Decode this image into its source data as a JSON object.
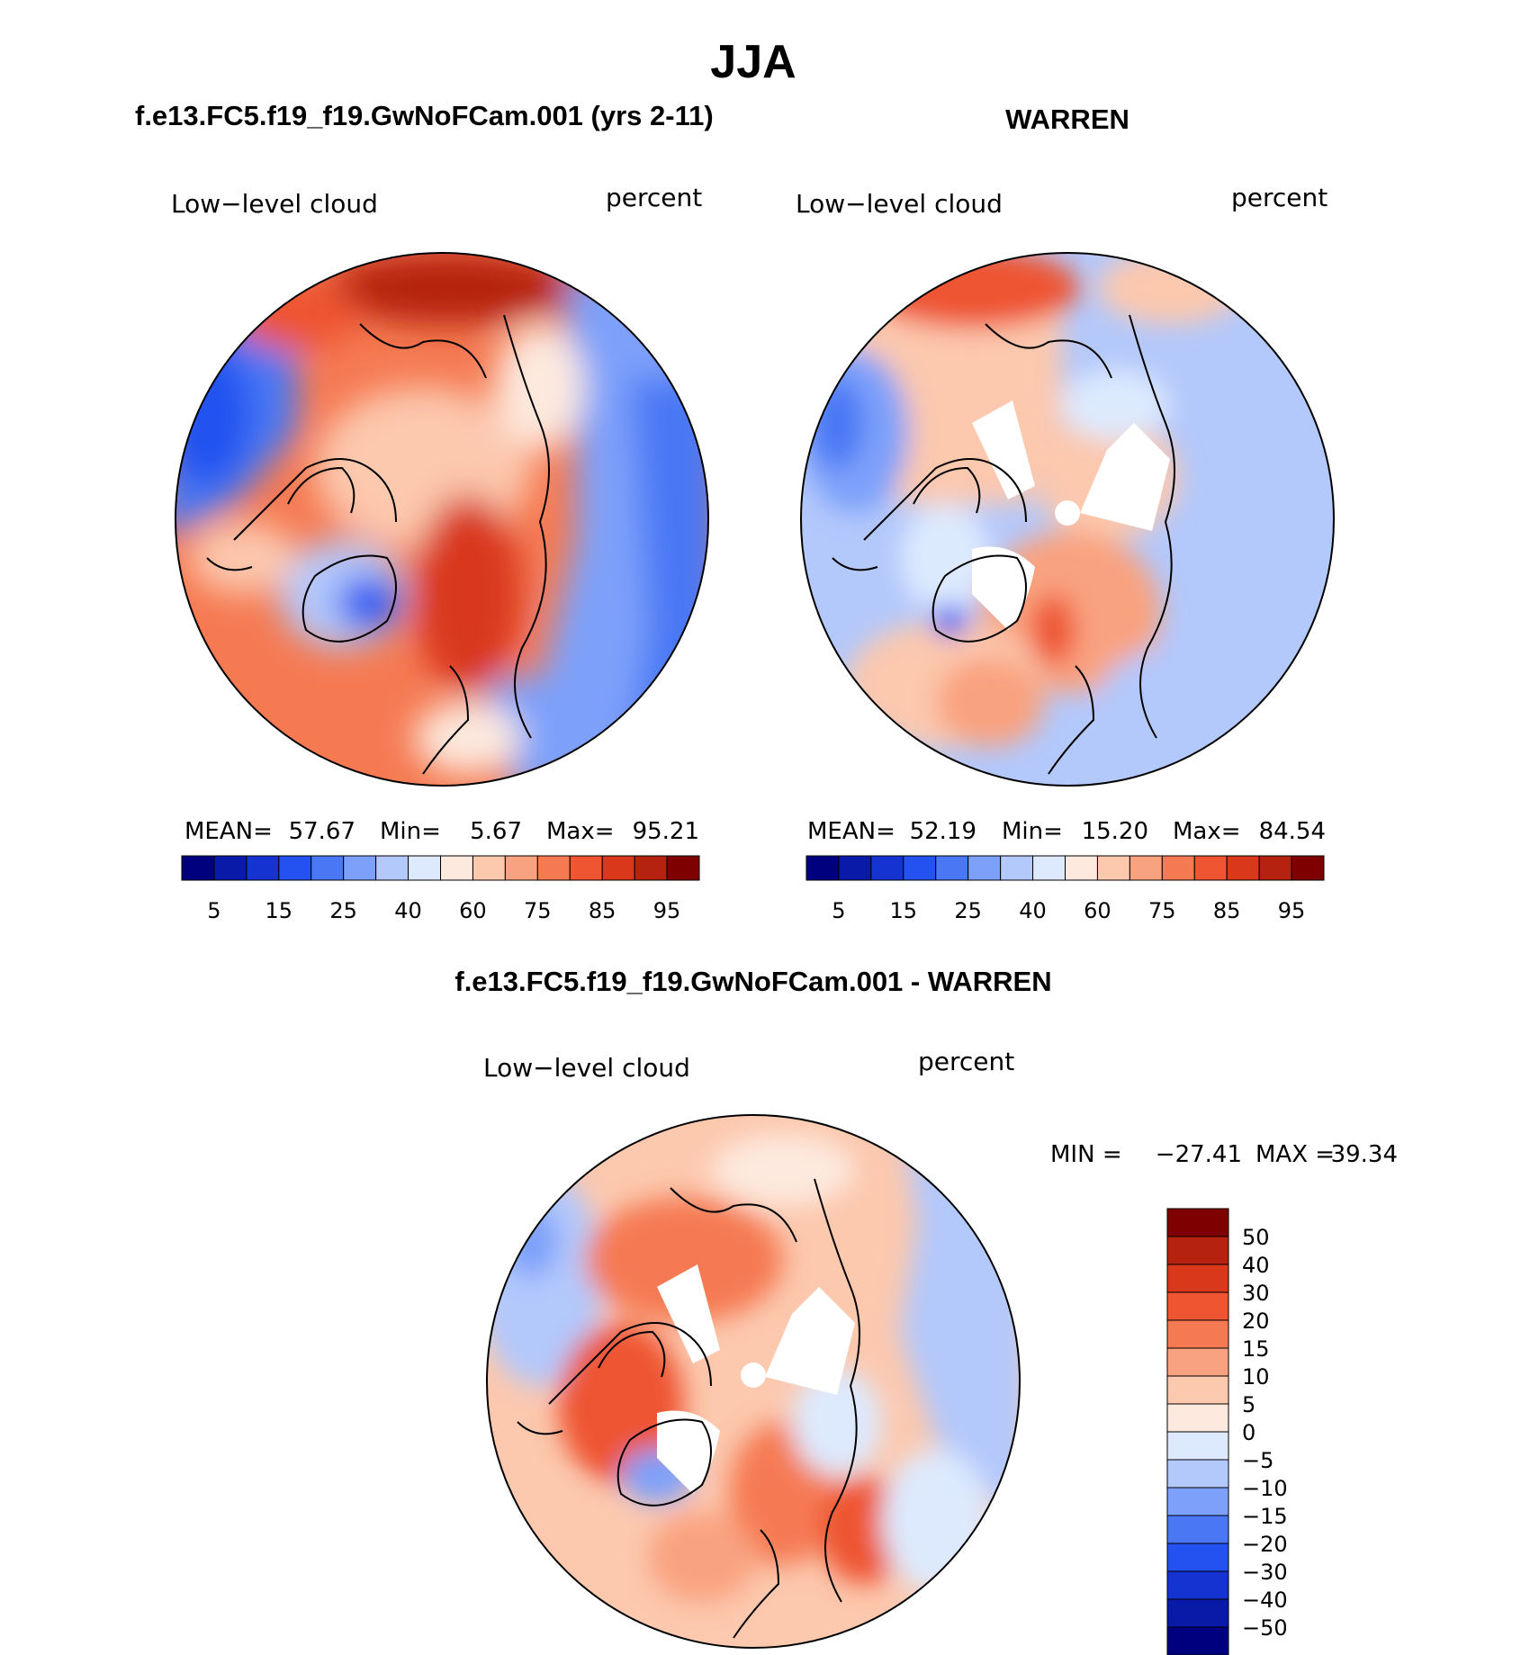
{
  "season": "JJA",
  "panels": {
    "model": {
      "header": "f.e13.FC5.f19_f19.GwNoFCam.001 (yrs 2-11)",
      "variable": "Low−level cloud",
      "units": "percent",
      "stats": {
        "mean_label": "MEAN=",
        "mean": "57.67",
        "min_label": "Min=",
        "min": "5.67",
        "max_label": "Max=",
        "max": "95.21"
      }
    },
    "obs": {
      "header": "WARREN",
      "variable": "Low−level cloud",
      "units": "percent",
      "stats": {
        "mean_label": "MEAN=",
        "mean": "52.19",
        "min_label": "Min=",
        "min": "15.20",
        "max_label": "Max=",
        "max": "84.54"
      }
    },
    "diff": {
      "header": "f.e13.FC5.f19_f19.GwNoFCam.001 - WARREN",
      "variable": "Low−level cloud",
      "units": "percent",
      "stats": {
        "min_label": "MIN =",
        "min": "−27.41",
        "max_label": "MAX =",
        "max": "39.34"
      }
    }
  },
  "colorbar_abs": {
    "colors": [
      "#00007f",
      "#0a1aa8",
      "#1433d1",
      "#2452f0",
      "#4a78f5",
      "#7da0fa",
      "#b3c8fb",
      "#ddeafe",
      "#fde9de",
      "#fcc8ae",
      "#f9a27f",
      "#f57a52",
      "#ee5530",
      "#d9381a",
      "#b52210",
      "#7f0000"
    ],
    "labels": [
      "5",
      "15",
      "25",
      "40",
      "60",
      "75",
      "85",
      "95"
    ]
  },
  "colorbar_diff": {
    "colors": [
      "#7f0000",
      "#b52210",
      "#d9381a",
      "#ee5530",
      "#f57a52",
      "#f9a27f",
      "#fcc8ae",
      "#fde9de",
      "#ddeafe",
      "#b3c8fb",
      "#7da0fa",
      "#4a78f5",
      "#2452f0",
      "#1433d1",
      "#0a1aa8",
      "#00007f"
    ],
    "labels": [
      "50",
      "40",
      "30",
      "20",
      "15",
      "10",
      "5",
      "0",
      "−5",
      "−10",
      "−15",
      "−20",
      "−30",
      "−40",
      "−50"
    ]
  }
}
